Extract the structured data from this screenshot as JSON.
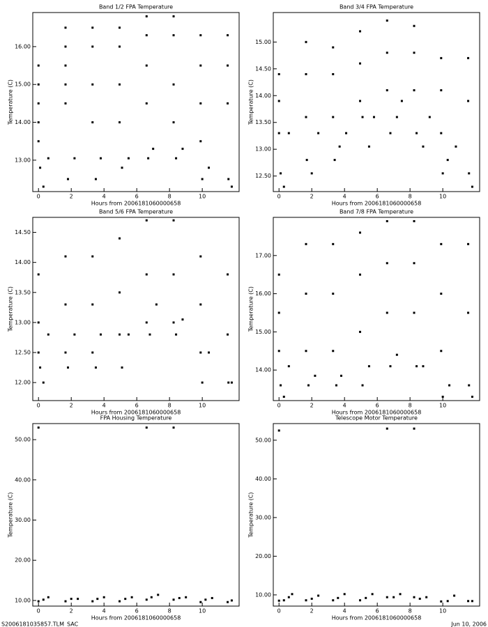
{
  "chart_data": [
    {
      "type": "scatter",
      "title": "Band 1/2 FPA Temperature",
      "x_label": "Hours from 2006181060000658",
      "y_label": "Temperature (C)",
      "color": "#000000",
      "xlim": [
        -0.35,
        12.25
      ],
      "xticks": [
        0,
        2,
        4,
        6,
        8,
        10
      ],
      "ylim": [
        12.17,
        16.9
      ],
      "yticks": [
        {
          "value": 13,
          "label": "13.00"
        },
        {
          "value": 14,
          "label": "14.00"
        },
        {
          "value": 15,
          "label": "15.00"
        },
        {
          "value": 16,
          "label": "16.00"
        }
      ],
      "x": [
        0,
        0,
        0,
        0,
        0,
        0.1,
        0.3,
        0.6,
        1.65,
        1.65,
        1.65,
        1.65,
        1.65,
        1.8,
        2.2,
        3.3,
        3.3,
        3.3,
        3.3,
        3.5,
        3.8,
        4.95,
        4.95,
        4.95,
        4.95,
        5.1,
        5.5,
        6.6,
        6.6,
        6.6,
        6.6,
        6.7,
        7.0,
        8.25,
        8.25,
        8.25,
        8.25,
        8.4,
        8.8,
        9.9,
        9.9,
        9.9,
        9.9,
        10.0,
        10.4,
        11.55,
        11.55,
        11.55,
        11.6,
        11.8
      ],
      "y": [
        15.5,
        15.0,
        14.5,
        14.0,
        13.5,
        12.8,
        12.3,
        13.05,
        16.5,
        16.0,
        15.5,
        15.0,
        14.5,
        12.5,
        13.05,
        16.5,
        16.0,
        15.0,
        14.0,
        12.5,
        13.05,
        16.5,
        16.0,
        15.0,
        14.0,
        12.8,
        13.05,
        16.8,
        16.3,
        15.5,
        14.5,
        13.05,
        13.3,
        16.8,
        16.3,
        15.0,
        14.0,
        13.05,
        13.3,
        16.3,
        15.5,
        14.5,
        13.5,
        12.5,
        12.8,
        16.3,
        15.5,
        14.5,
        12.5,
        12.3
      ]
    },
    {
      "type": "scatter",
      "title": "Band 3/4 FPA Temperature",
      "x_label": "Hours from 2006181060000658",
      "y_label": "Temperature (C)",
      "color": "#000000",
      "xlim": [
        -0.35,
        12.25
      ],
      "xticks": [
        0,
        2,
        4,
        6,
        8,
        10
      ],
      "ylim": [
        12.21,
        15.55
      ],
      "yticks": [
        {
          "value": 12.5,
          "label": "12.50"
        },
        {
          "value": 13,
          "label": "13.00"
        },
        {
          "value": 13.5,
          "label": "13.50"
        },
        {
          "value": 14,
          "label": "14.00"
        },
        {
          "value": 14.5,
          "label": "14.50"
        },
        {
          "value": 15,
          "label": "15.00"
        }
      ],
      "x": [
        0,
        0,
        0,
        0.1,
        0.3,
        0.6,
        1.65,
        1.65,
        1.65,
        1.7,
        2.0,
        2.4,
        3.3,
        3.3,
        3.3,
        3.4,
        3.7,
        4.1,
        4.95,
        4.95,
        4.95,
        5.1,
        5.5,
        5.8,
        6.6,
        6.6,
        6.6,
        6.8,
        7.2,
        7.5,
        8.25,
        8.25,
        8.25,
        8.4,
        8.8,
        9.2,
        9.9,
        9.9,
        9.9,
        10.0,
        10.3,
        10.8,
        11.55,
        11.55,
        11.6,
        11.8
      ],
      "y": [
        14.4,
        13.9,
        13.3,
        12.55,
        12.3,
        13.3,
        15.0,
        14.4,
        13.6,
        12.8,
        12.55,
        13.3,
        14.9,
        14.4,
        13.6,
        12.8,
        13.05,
        13.3,
        15.2,
        14.6,
        13.9,
        13.6,
        13.05,
        13.6,
        15.4,
        14.8,
        14.1,
        13.3,
        13.6,
        13.9,
        15.3,
        14.8,
        14.1,
        13.3,
        13.05,
        13.6,
        14.7,
        14.1,
        13.3,
        12.55,
        12.8,
        13.05,
        14.7,
        13.9,
        12.55,
        12.3
      ]
    },
    {
      "type": "scatter",
      "title": "Band 5/6 FPA Temperature",
      "x_label": "Hours from 2006181060000658",
      "y_label": "Temperature (C)",
      "color": "#000000",
      "xlim": [
        -0.35,
        12.25
      ],
      "xticks": [
        0,
        2,
        4,
        6,
        8,
        10
      ],
      "ylim": [
        11.7,
        14.75
      ],
      "yticks": [
        {
          "value": 12,
          "label": "12.00"
        },
        {
          "value": 12.5,
          "label": "12.50"
        },
        {
          "value": 13,
          "label": "13.00"
        },
        {
          "value": 13.5,
          "label": "13.50"
        },
        {
          "value": 14,
          "label": "14.00"
        },
        {
          "value": 14.5,
          "label": "14.50"
        }
      ],
      "x": [
        0,
        0,
        0,
        0.1,
        0.3,
        0.6,
        1.65,
        1.65,
        1.65,
        1.8,
        2.2,
        3.3,
        3.3,
        3.3,
        3.5,
        3.8,
        4.95,
        4.95,
        4.95,
        5.1,
        5.5,
        6.6,
        6.6,
        6.6,
        6.8,
        7.2,
        8.25,
        8.25,
        8.25,
        8.4,
        8.8,
        9.9,
        9.9,
        9.9,
        10.0,
        10.4,
        11.55,
        11.55,
        11.6,
        11.8
      ],
      "y": [
        13.8,
        13.0,
        12.5,
        12.25,
        12.0,
        12.8,
        14.1,
        13.3,
        12.5,
        12.25,
        12.8,
        14.1,
        13.3,
        12.5,
        12.25,
        12.8,
        14.4,
        13.5,
        12.8,
        12.25,
        12.8,
        14.7,
        13.8,
        13.0,
        12.8,
        13.3,
        14.7,
        13.8,
        13.0,
        12.8,
        13.05,
        14.1,
        13.3,
        12.5,
        12.0,
        12.5,
        13.8,
        12.8,
        12.0,
        12.0
      ]
    },
    {
      "type": "scatter",
      "title": "Band 7/8 FPA Temperature",
      "x_label": "Hours from 2006181060000658",
      "y_label": "Temperature (C)",
      "color": "#000000",
      "xlim": [
        -0.35,
        12.25
      ],
      "xticks": [
        0,
        2,
        4,
        6,
        8,
        10
      ],
      "ylim": [
        13.2,
        18.0
      ],
      "yticks": [
        {
          "value": 14,
          "label": "14.00"
        },
        {
          "value": 15,
          "label": "15.00"
        },
        {
          "value": 16,
          "label": "16.00"
        },
        {
          "value": 17,
          "label": "17.00"
        }
      ],
      "x": [
        0,
        0,
        0,
        0.1,
        0.3,
        0.6,
        1.65,
        1.65,
        1.65,
        1.8,
        2.2,
        3.3,
        3.3,
        3.3,
        3.5,
        3.8,
        4.95,
        4.95,
        4.95,
        5.1,
        5.5,
        6.6,
        6.6,
        6.6,
        6.8,
        7.2,
        8.25,
        8.25,
        8.25,
        8.4,
        8.8,
        9.9,
        9.9,
        9.9,
        10.0,
        10.4,
        11.55,
        11.55,
        11.6,
        11.8
      ],
      "y": [
        16.5,
        15.5,
        14.5,
        13.6,
        13.3,
        14.1,
        17.3,
        16.0,
        14.5,
        13.6,
        13.85,
        17.3,
        16.0,
        14.5,
        13.6,
        13.85,
        17.6,
        16.5,
        15.0,
        13.6,
        14.1,
        17.9,
        16.8,
        15.5,
        14.1,
        14.4,
        17.9,
        16.8,
        15.5,
        14.1,
        14.1,
        17.3,
        16.0,
        14.5,
        13.3,
        13.6,
        17.3,
        15.5,
        13.6,
        13.3
      ]
    },
    {
      "type": "scatter",
      "title": "FPA Housing Temperature",
      "x_label": "Hours from 2006181060000658",
      "y_label": "Temperature (C)",
      "color": "#000000",
      "xlim": [
        -0.35,
        12.25
      ],
      "xticks": [
        0,
        2,
        4,
        6,
        8,
        10
      ],
      "ylim": [
        8.6,
        54
      ],
      "yticks": [
        {
          "value": 10,
          "label": "10.00"
        },
        {
          "value": 20,
          "label": "20.00"
        },
        {
          "value": 30,
          "label": "30.00"
        },
        {
          "value": 40,
          "label": "40.00"
        },
        {
          "value": 50,
          "label": "50.00"
        }
      ],
      "x": [
        0,
        0.3,
        0.6,
        1.65,
        2.0,
        2.4,
        3.3,
        3.6,
        4.0,
        4.95,
        5.3,
        5.7,
        6.6,
        6.9,
        7.3,
        8.25,
        8.6,
        9.0,
        9.9,
        10.2,
        10.6,
        11.55,
        11.8,
        0,
        6.6,
        8.25
      ],
      "y": [
        9.8,
        10.2,
        10.8,
        9.8,
        10.4,
        10.4,
        9.8,
        10.4,
        10.8,
        9.8,
        10.4,
        10.8,
        10.2,
        10.8,
        11.4,
        10.2,
        10.6,
        10.8,
        9.6,
        10.2,
        10.6,
        9.6,
        10.0,
        53,
        53,
        53
      ]
    },
    {
      "type": "scatter",
      "title": "Telescope Motor Temperature",
      "x_label": "Hours from 2006181060000658",
      "y_label": "Temperature (C)",
      "color": "#000000",
      "xlim": [
        -0.35,
        12.25
      ],
      "xticks": [
        0,
        2,
        4,
        6,
        8,
        10
      ],
      "ylim": [
        7.1,
        54.3
      ],
      "yticks": [
        {
          "value": 10,
          "label": "10.00"
        },
        {
          "value": 20,
          "label": "20.00"
        },
        {
          "value": 30,
          "label": "30.00"
        },
        {
          "value": 40,
          "label": "40.00"
        },
        {
          "value": 50,
          "label": "50.00"
        }
      ],
      "x": [
        0,
        0.3,
        0.6,
        0.8,
        1.65,
        2.0,
        2.4,
        3.3,
        3.6,
        4.0,
        4.95,
        5.3,
        5.7,
        6.6,
        7.0,
        7.4,
        8.25,
        8.6,
        9.0,
        9.9,
        10.3,
        10.7,
        11.55,
        11.8,
        0,
        6.6,
        8.25
      ],
      "y": [
        8.5,
        8.6,
        9.4,
        10.2,
        8.6,
        9.0,
        9.8,
        8.6,
        9.2,
        10.2,
        8.6,
        9.2,
        10.2,
        9.4,
        9.4,
        10.2,
        9.4,
        9.0,
        9.4,
        8.3,
        8.4,
        9.8,
        8.4,
        8.4,
        52.5,
        53,
        53
      ]
    }
  ],
  "footer": {
    "file": "S2006181035857.TLM_SAC",
    "date": "Jun 10, 2006"
  }
}
